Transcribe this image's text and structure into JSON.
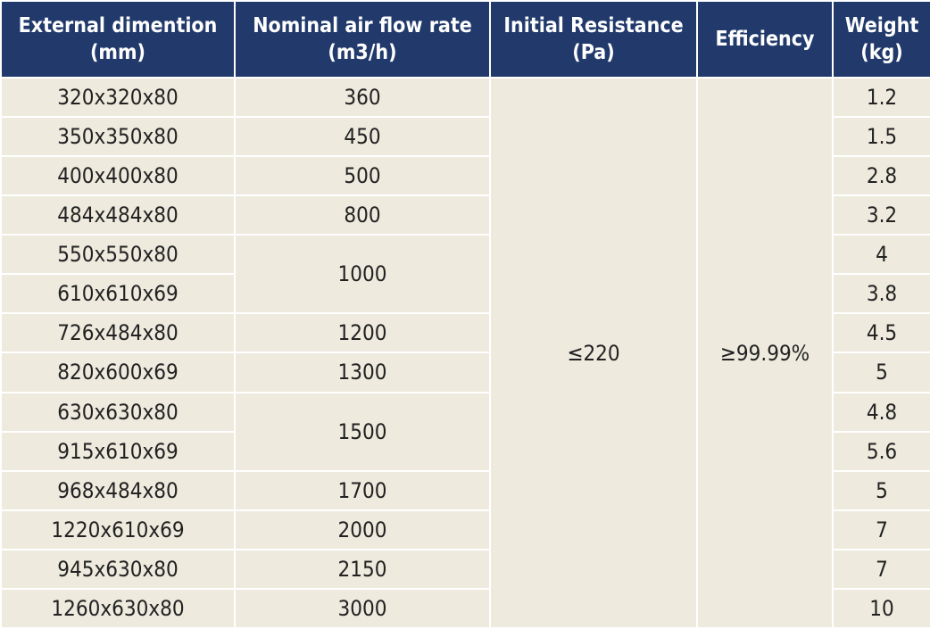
{
  "table": {
    "headers": [
      {
        "name": "External dimention",
        "unit": "(mm)"
      },
      {
        "name": "Nominal air flow rate",
        "unit": "(m3/h)"
      },
      {
        "name": "Initial Resistance",
        "unit": "(Pa)"
      },
      {
        "name": "Efficiency"
      },
      {
        "name": "Weight",
        "unit": "(kg)"
      }
    ],
    "dimensions": [
      "320x320x80",
      "350x350x80",
      "400x400x80",
      "484x484x80",
      "550x550x80",
      "610x610x69",
      "726x484x80",
      "820x600x69",
      "630x630x80",
      "915x610x69",
      "968x484x80",
      "1220x610x69",
      "945x630x80",
      "1260x630x80"
    ],
    "airflow": [
      360,
      450,
      500,
      800,
      1000,
      1200,
      1300,
      1500,
      1700,
      2000,
      2150,
      3000
    ],
    "resistance": "≤220",
    "efficiency": "≥99.99%",
    "weights": [
      1.2,
      1.5,
      2.8,
      3.2,
      4,
      3.8,
      4.5,
      5,
      4.8,
      5.6,
      5,
      7,
      7,
      10
    ]
  }
}
